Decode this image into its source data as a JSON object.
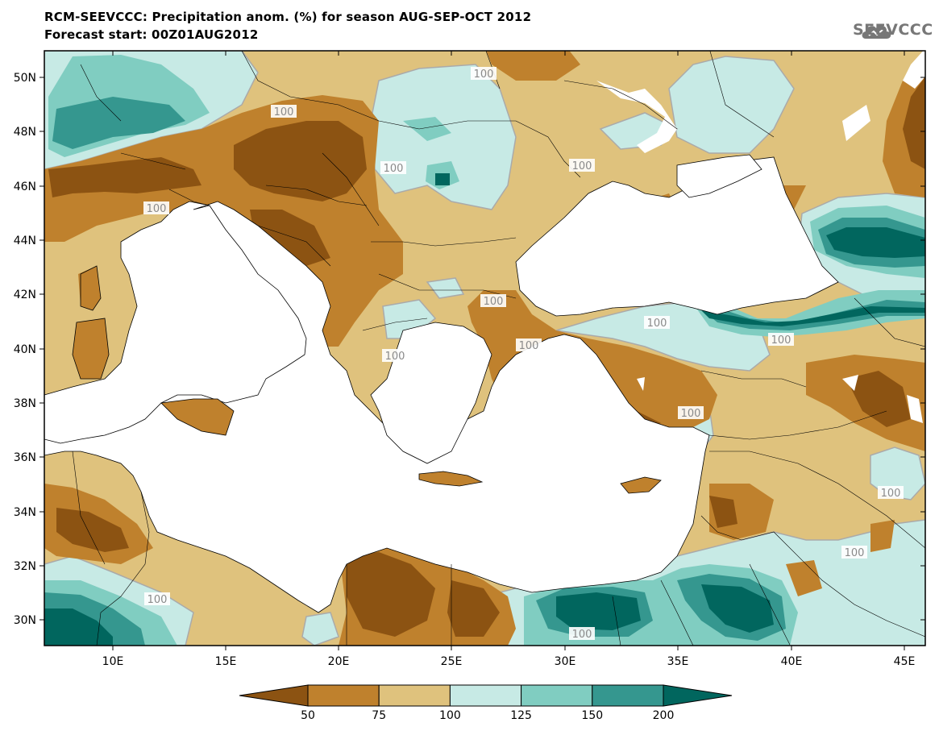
{
  "header": {
    "title_line1": "RCM-SEEVCCC: Precipitation anom. (%) for season AUG-SEP-OCT 2012",
    "title_line2": "Forecast start: 00Z01AUG2012",
    "logo_text": "SEEVCCC"
  },
  "map": {
    "lat_labels": [
      "50N",
      "48N",
      "46N",
      "44N",
      "42N",
      "40N",
      "38N",
      "36N",
      "34N",
      "32N",
      "30N"
    ],
    "lon_labels": [
      "10E",
      "15E",
      "20E",
      "25E",
      "30E",
      "35E",
      "40E",
      "45E"
    ],
    "contour_labels": [
      "100",
      "100",
      "100",
      "100",
      "100",
      "100",
      "100",
      "100",
      "100",
      "100",
      "100",
      "100",
      "100",
      "100",
      "100"
    ],
    "colors": {
      "lt50": "#8c5312",
      "50_75": "#bf812d",
      "75_100": "#dfc27d",
      "100_125": "#c7eae5",
      "125_150": "#80cdc1",
      "150_200": "#35978f",
      "gt200": "#01665e",
      "sea": "#ffffff"
    }
  },
  "legend": {
    "labels": [
      "50",
      "75",
      "100",
      "125",
      "150",
      "200"
    ],
    "colors": [
      "#8c5312",
      "#bf812d",
      "#dfc27d",
      "#c7eae5",
      "#80cdc1",
      "#35978f",
      "#01665e"
    ]
  }
}
